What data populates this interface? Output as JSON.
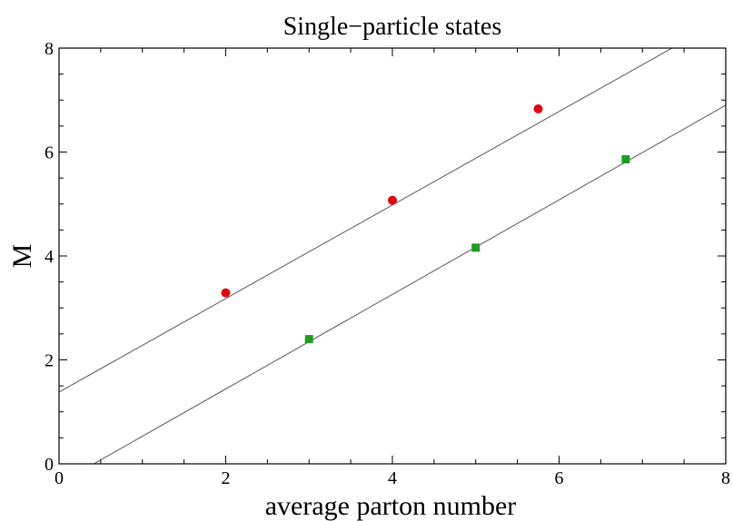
{
  "chart_data": {
    "type": "scatter",
    "title": "Single−particle states",
    "xlabel": "average parton number",
    "ylabel": "M",
    "xlim": [
      0,
      8
    ],
    "ylim": [
      0,
      8
    ],
    "xticks": [
      "0",
      "2",
      "4",
      "6",
      "8"
    ],
    "yticks": [
      "0",
      "2",
      "4",
      "6",
      "8"
    ],
    "grid": false,
    "series": [
      {
        "color": "#e3000f",
        "marker": "circle",
        "points": [
          {
            "x": 2.0,
            "y": 3.29
          },
          {
            "x": 4.0,
            "y": 5.07
          },
          {
            "x": 5.75,
            "y": 6.83
          }
        ]
      },
      {
        "color": "#1f9e1f",
        "marker": "square",
        "points": [
          {
            "x": 3.0,
            "y": 2.4
          },
          {
            "x": 5.0,
            "y": 4.16
          },
          {
            "x": 6.8,
            "y": 5.86
          }
        ]
      }
    ],
    "fit_lines": [
      {
        "color": "#555555",
        "intercept": 1.38,
        "slope": 0.9
      },
      {
        "color": "#555555",
        "intercept": -0.38,
        "slope": 0.91
      }
    ]
  }
}
